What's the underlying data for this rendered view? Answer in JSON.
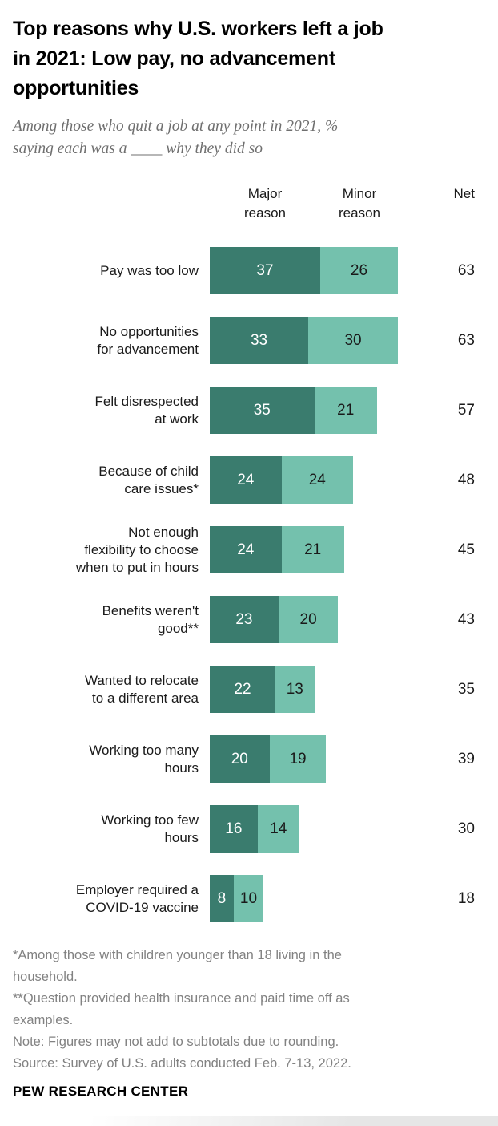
{
  "header": {
    "title": "Top reasons why U.S. workers left a job\nin 2021: Low pay, no advancement\nopportunities",
    "subtitle": "Among those who quit a job at any point in 2021, %\nsaying each was a ____ why they did so"
  },
  "chart_data": {
    "type": "bar",
    "stacked": true,
    "orientation": "horizontal",
    "xmax": 63,
    "columns": {
      "major": "Major\nreason",
      "minor": "Minor\nreason",
      "net": "Net"
    },
    "categories": [
      "Pay was too low",
      "No opportunities\nfor advancement",
      "Felt disrespected\nat work",
      "Because of child\ncare issues*",
      "Not enough\nflexibility to choose\nwhen to put in hours",
      "Benefits weren't\ngood**",
      "Wanted to relocate\nto a different area",
      "Working too many\nhours",
      "Working too few\nhours",
      "Employer required a\nCOVID-19 vaccine"
    ],
    "series": [
      {
        "name": "Major reason",
        "values": [
          37,
          33,
          35,
          24,
          24,
          23,
          22,
          20,
          16,
          8
        ]
      },
      {
        "name": "Minor reason",
        "values": [
          26,
          30,
          21,
          24,
          21,
          20,
          13,
          19,
          14,
          10
        ]
      }
    ],
    "net": [
      63,
      63,
      57,
      48,
      45,
      43,
      35,
      39,
      30,
      18
    ],
    "colors": {
      "major": "#3a7c6e",
      "minor": "#74c1ad"
    }
  },
  "footer": {
    "notes": [
      "*Among those with children younger than 18 living in the\nhousehold.",
      "**Question provided health insurance and paid time off as\nexamples.",
      "Note: Figures may not add to subtotals due to rounding.",
      "Source: Survey of U.S. adults conducted Feb. 7-13, 2022."
    ],
    "brand": "PEW RESEARCH CENTER"
  }
}
